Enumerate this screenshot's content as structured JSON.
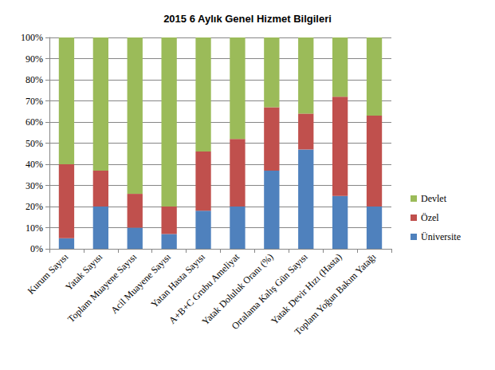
{
  "chart_data": {
    "type": "bar",
    "title": "2015 6 Aylık Genel Hizmet Bilgileri",
    "stacked": true,
    "grid": true,
    "legend": "right",
    "categories": [
      "Kurum Sayısı",
      "Yatak Sayısı",
      "Toplam Muayene Sayısı",
      "Acil Muayene Sayısı",
      "Yatan Hasta Sayısı",
      "A+B+C Grubu Ameliyat",
      "Yatak Doluluk Oranı (%)",
      "Ortalama Kalış Gün Sayısı",
      "Yatak Devir Hızı (Hasta)",
      "Toplam Yoğun Bakım Yatağı"
    ],
    "series": [
      {
        "name": "Üniversite",
        "color": "#4F81BD",
        "values": [
          5,
          20,
          10,
          7,
          18,
          20,
          37,
          47,
          25,
          20
        ]
      },
      {
        "name": "Özel",
        "color": "#C0504D",
        "values": [
          35,
          17,
          16,
          13,
          28,
          32,
          30,
          17,
          47,
          43
        ]
      },
      {
        "name": "Devlet",
        "color": "#9BBB59",
        "values": [
          60,
          63,
          74,
          80,
          54,
          48,
          33,
          36,
          28,
          37
        ]
      }
    ],
    "ylim": [
      0,
      100
    ],
    "yticks": [
      {
        "value": 0,
        "label": "0%"
      },
      {
        "value": 10,
        "label": "10%"
      },
      {
        "value": 20,
        "label": "20%"
      },
      {
        "value": 30,
        "label": "30%"
      },
      {
        "value": 40,
        "label": "40%"
      },
      {
        "value": 50,
        "label": "50%"
      },
      {
        "value": 60,
        "label": "60%"
      },
      {
        "value": 70,
        "label": "70%"
      },
      {
        "value": 80,
        "label": "80%"
      },
      {
        "value": 90,
        "label": "90%"
      },
      {
        "value": 100,
        "label": "100%"
      }
    ]
  }
}
